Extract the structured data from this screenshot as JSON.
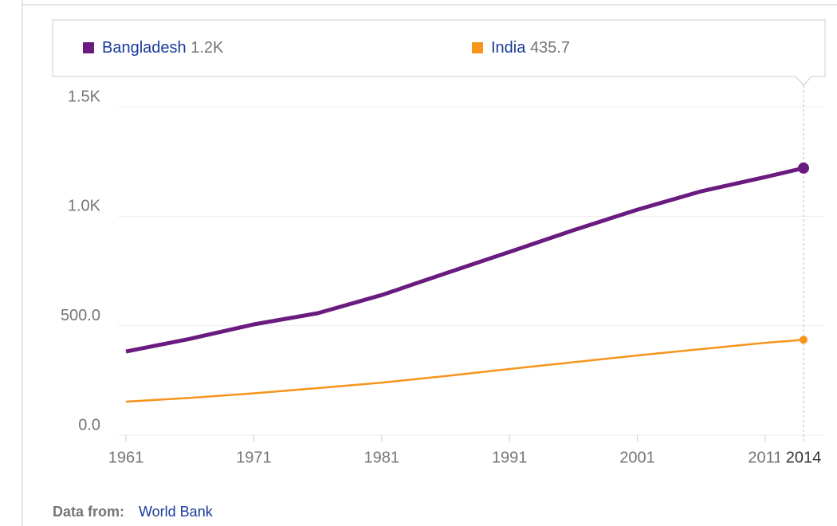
{
  "chart_data": {
    "type": "line",
    "x": [
      1961,
      1966,
      1971,
      1976,
      1981,
      1986,
      1991,
      1996,
      2001,
      2006,
      2011,
      2014
    ],
    "series": [
      {
        "name": "Bangladesh",
        "color": "#6a1b7f",
        "values": [
          382,
          440,
          506,
          557,
          640,
          739,
          837,
          936,
          1030,
          1114,
          1179,
          1220
        ],
        "value_labels": [
          null,
          null,
          null,
          null,
          null,
          null,
          null,
          null,
          null,
          null,
          null,
          "1.2K"
        ]
      },
      {
        "name": "India",
        "color": "#f7941d",
        "values": [
          153,
          170,
          191,
          215,
          240,
          270,
          302,
          333,
          364,
          393,
          422,
          435.7
        ],
        "value_labels": [
          null,
          null,
          null,
          null,
          null,
          null,
          null,
          null,
          null,
          null,
          null,
          "435.7"
        ]
      }
    ],
    "xlim": [
      1961,
      2014
    ],
    "xticks": [
      1961,
      1971,
      1981,
      1991,
      2001,
      2011
    ],
    "highlight_x": 2014,
    "ylim": [
      0,
      1500
    ],
    "yticks": [
      {
        "value": 0,
        "label": "0.0"
      },
      {
        "value": 500,
        "label": "500.0"
      },
      {
        "value": 1000,
        "label": "1.0K"
      },
      {
        "value": 1500,
        "label": "1.5K"
      }
    ],
    "grid": true,
    "source_prefix": "Data from:",
    "source": "World Bank"
  }
}
